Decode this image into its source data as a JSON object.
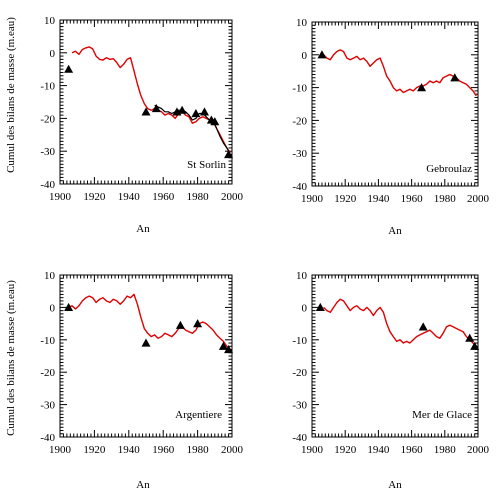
{
  "figure": {
    "ylabel": "Cumul des bilans de masse (m.eau)",
    "xlabel": "An"
  },
  "chart_data": [
    {
      "type": "line",
      "name": "St Sorlin",
      "xlabel": "An",
      "ylabel": "Cumul des bilans de masse (m.eau)",
      "xlim": [
        1900,
        2000
      ],
      "ylim": [
        -40,
        10
      ],
      "xticks": [
        1900,
        1920,
        1940,
        1960,
        1980,
        2000
      ],
      "yticks": [
        10,
        0,
        -10,
        -20,
        -30,
        -40
      ],
      "series": [
        {
          "type": "line",
          "color": "#e00000",
          "x": [
            1907,
            1909,
            1911,
            1913,
            1915,
            1917,
            1919,
            1921,
            1923,
            1925,
            1927,
            1929,
            1931,
            1933,
            1935,
            1937,
            1939,
            1941,
            1943,
            1945,
            1947,
            1949,
            1951,
            1953,
            1955,
            1957,
            1959,
            1961,
            1963,
            1965,
            1967,
            1969,
            1971,
            1973,
            1975,
            1977,
            1979,
            1981,
            1983,
            1985,
            1987,
            1989,
            1991,
            1993,
            1995,
            1997,
            1999
          ],
          "y": [
            0,
            0.5,
            -0.5,
            1,
            1.5,
            1.8,
            1.2,
            -1,
            -2,
            -2.2,
            -1.5,
            -2,
            -1.8,
            -3,
            -4.5,
            -3.5,
            -2,
            -1.5,
            -5.5,
            -9.5,
            -13,
            -15.5,
            -17,
            -17.5,
            -17,
            -17.5,
            -18,
            -19,
            -18.5,
            -19,
            -20,
            -18.5,
            -18,
            -19,
            -19.5,
            -21.5,
            -21,
            -20,
            -19.5,
            -20,
            -20.5,
            -21,
            -23,
            -25,
            -27,
            -29,
            -30.5
          ]
        },
        {
          "type": "line",
          "color": "#000000",
          "x": [
            1955,
            1957,
            1959,
            1961,
            1963,
            1965,
            1967,
            1969,
            1971,
            1973,
            1975,
            1977,
            1979,
            1981,
            1983,
            1985,
            1987,
            1989,
            1991,
            1993,
            1995,
            1997,
            1999
          ],
          "y": [
            -16,
            -16.5,
            -17,
            -18,
            -18,
            -18.5,
            -18,
            -17.5,
            -17.5,
            -18,
            -19,
            -20.5,
            -20,
            -18.5,
            -18.5,
            -19.5,
            -20.5,
            -20.5,
            -23,
            -25.5,
            -27.5,
            -29,
            -31
          ]
        },
        {
          "type": "scatter",
          "marker": "triangle",
          "x": [
            1905,
            1950,
            1956,
            1968,
            1971,
            1979,
            1984,
            1988,
            1990,
            1998
          ],
          "y": [
            -5,
            -18,
            -17,
            -18,
            -17.5,
            -18.5,
            -18,
            -20.5,
            -21,
            -31
          ]
        }
      ]
    },
    {
      "type": "line",
      "name": "Gebroulaz",
      "xlabel": "An",
      "xlim": [
        1900,
        2000
      ],
      "ylim": [
        -40,
        10
      ],
      "xticks": [
        1900,
        1920,
        1940,
        1960,
        1980,
        2000
      ],
      "yticks": [
        10,
        0,
        -10,
        -20,
        -30,
        -40
      ],
      "series": [
        {
          "type": "line",
          "color": "#e00000",
          "x": [
            1907,
            1909,
            1911,
            1913,
            1915,
            1917,
            1919,
            1921,
            1923,
            1925,
            1927,
            1929,
            1931,
            1933,
            1935,
            1937,
            1939,
            1941,
            1943,
            1945,
            1947,
            1949,
            1951,
            1953,
            1955,
            1957,
            1959,
            1961,
            1963,
            1965,
            1967,
            1969,
            1971,
            1973,
            1975,
            1977,
            1979,
            1981,
            1983,
            1985,
            1987,
            1989,
            1991,
            1993,
            1995,
            1997,
            1999
          ],
          "y": [
            0,
            -1,
            -1.5,
            0,
            1,
            1.5,
            1,
            -1,
            -1.5,
            -1,
            -0.5,
            -1.5,
            -1,
            -2,
            -3.5,
            -2.5,
            -1.5,
            -1,
            -3.5,
            -6.5,
            -8,
            -10,
            -11,
            -10.5,
            -11.5,
            -11,
            -10.5,
            -11,
            -10,
            -9.5,
            -9.5,
            -9,
            -8,
            -8.5,
            -8,
            -8.5,
            -7,
            -6.5,
            -6,
            -6.5,
            -7,
            -8,
            -8.5,
            -9,
            -10,
            -11,
            -12.5
          ]
        },
        {
          "type": "scatter",
          "marker": "triangle",
          "x": [
            1906,
            1966,
            1986
          ],
          "y": [
            0,
            -10,
            -7
          ]
        }
      ]
    },
    {
      "type": "line",
      "name": "Argentiere",
      "xlabel": "An",
      "ylabel": "Cumul des bilans de masse (m.eau)",
      "xlim": [
        1900,
        2000
      ],
      "ylim": [
        -40,
        10
      ],
      "xticks": [
        1900,
        1920,
        1940,
        1960,
        1980,
        2000
      ],
      "yticks": [
        10,
        0,
        -10,
        -20,
        -30,
        -40
      ],
      "series": [
        {
          "type": "line",
          "color": "#e00000",
          "x": [
            1905,
            1907,
            1909,
            1911,
            1913,
            1915,
            1917,
            1919,
            1921,
            1923,
            1925,
            1927,
            1929,
            1931,
            1933,
            1935,
            1937,
            1939,
            1941,
            1943,
            1945,
            1947,
            1949,
            1951,
            1953,
            1955,
            1957,
            1959,
            1961,
            1963,
            1965,
            1967,
            1969,
            1971,
            1973,
            1975,
            1977,
            1979,
            1981,
            1983,
            1985,
            1987,
            1989,
            1991,
            1993,
            1995,
            1997,
            1999
          ],
          "y": [
            0,
            0.5,
            -0.5,
            0.5,
            2,
            3,
            3.5,
            3,
            1.5,
            2.5,
            3,
            2,
            1.5,
            2.5,
            2,
            1,
            2,
            3.5,
            3,
            4,
            1,
            -3,
            -6.5,
            -8,
            -9,
            -8.5,
            -9.5,
            -9,
            -8,
            -8.5,
            -9,
            -8,
            -6.5,
            -6,
            -7,
            -7.5,
            -8,
            -7,
            -5,
            -4.5,
            -5,
            -6,
            -7,
            -8.5,
            -9.5,
            -10.5,
            -12,
            -13.5
          ]
        },
        {
          "type": "scatter",
          "marker": "triangle",
          "x": [
            1905,
            1950,
            1970,
            1980,
            1995,
            1998
          ],
          "y": [
            0,
            -11,
            -5.5,
            -5,
            -12,
            -13
          ]
        }
      ]
    },
    {
      "type": "line",
      "name": "Mer de Glace",
      "xlabel": "An",
      "xlim": [
        1900,
        2000
      ],
      "ylim": [
        -40,
        10
      ],
      "xticks": [
        1900,
        1920,
        1940,
        1960,
        1980,
        2000
      ],
      "yticks": [
        10,
        0,
        -10,
        -20,
        -30,
        -40
      ],
      "series": [
        {
          "type": "line",
          "color": "#e00000",
          "x": [
            1907,
            1909,
            1911,
            1913,
            1915,
            1917,
            1919,
            1921,
            1923,
            1925,
            1927,
            1929,
            1931,
            1933,
            1935,
            1937,
            1939,
            1941,
            1943,
            1945,
            1947,
            1949,
            1951,
            1953,
            1955,
            1957,
            1959,
            1961,
            1963,
            1965,
            1967,
            1969,
            1971,
            1973,
            1975,
            1977,
            1979,
            1981,
            1983,
            1985,
            1987,
            1989,
            1991,
            1993,
            1995,
            1997,
            1999
          ],
          "y": [
            0,
            -1,
            -1.5,
            0,
            1.5,
            2.5,
            2,
            0.5,
            -1,
            0,
            0.5,
            -0.5,
            -1,
            0,
            -1,
            -2.5,
            -1,
            0,
            -1.5,
            -5,
            -7.5,
            -9,
            -10.5,
            -10,
            -11,
            -10.5,
            -11,
            -10,
            -9,
            -8.5,
            -8,
            -7.5,
            -7,
            -8,
            -9,
            -9.5,
            -8,
            -6,
            -5.5,
            -6,
            -6.5,
            -7,
            -7.5,
            -9,
            -10,
            -11,
            -12
          ]
        },
        {
          "type": "scatter",
          "marker": "triangle",
          "x": [
            1905,
            1967,
            1995,
            1998
          ],
          "y": [
            0,
            -6,
            -9.5,
            -12
          ]
        }
      ]
    }
  ]
}
